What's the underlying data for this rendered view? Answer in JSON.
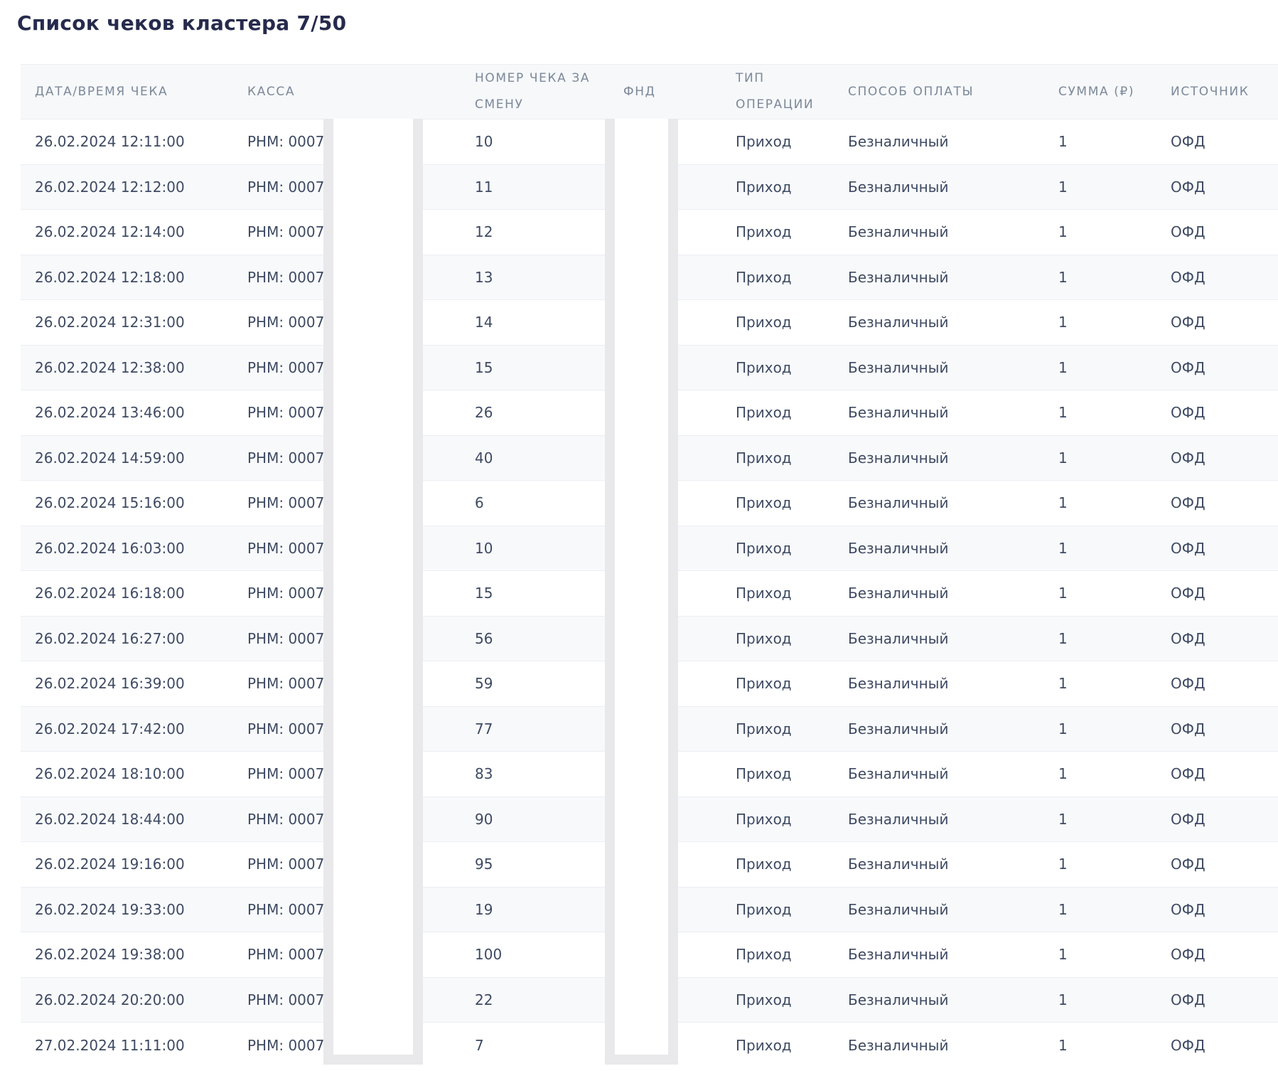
{
  "page": {
    "title": "Список чеков кластера 7/50"
  },
  "table": {
    "columns": [
      {
        "key": "datetime",
        "label": "ДАТА/ВРЕМЯ ЧЕКА"
      },
      {
        "key": "kassa",
        "label": "КАССА"
      },
      {
        "key": "check_no",
        "label": "НОМЕР ЧЕКА ЗА СМЕНУ"
      },
      {
        "key": "fnd",
        "label": "ФНД"
      },
      {
        "key": "op_type",
        "label": "ТИП ОПЕРАЦИИ"
      },
      {
        "key": "payment",
        "label": "СПОСОБ ОПЛАТЫ"
      },
      {
        "key": "sum",
        "label": "СУММА (₽)"
      },
      {
        "key": "source",
        "label": "ИСТОЧНИК"
      }
    ],
    "rows": [
      {
        "datetime": "26.02.2024 12:11:00",
        "kassa": "РНМ: 0007",
        "check_no": "10",
        "fnd": "",
        "op_type": "Приход",
        "payment": "Безналичный",
        "sum": "1",
        "source": "ОФД"
      },
      {
        "datetime": "26.02.2024 12:12:00",
        "kassa": "РНМ: 0007",
        "check_no": "11",
        "fnd": "",
        "op_type": "Приход",
        "payment": "Безналичный",
        "sum": "1",
        "source": "ОФД"
      },
      {
        "datetime": "26.02.2024 12:14:00",
        "kassa": "РНМ: 0007",
        "check_no": "12",
        "fnd": "",
        "op_type": "Приход",
        "payment": "Безналичный",
        "sum": "1",
        "source": "ОФД"
      },
      {
        "datetime": "26.02.2024 12:18:00",
        "kassa": "РНМ: 0007",
        "check_no": "13",
        "fnd": "",
        "op_type": "Приход",
        "payment": "Безналичный",
        "sum": "1",
        "source": "ОФД"
      },
      {
        "datetime": "26.02.2024 12:31:00",
        "kassa": "РНМ: 0007",
        "check_no": "14",
        "fnd": "",
        "op_type": "Приход",
        "payment": "Безналичный",
        "sum": "1",
        "source": "ОФД"
      },
      {
        "datetime": "26.02.2024 12:38:00",
        "kassa": "РНМ: 0007",
        "check_no": "15",
        "fnd": "",
        "op_type": "Приход",
        "payment": "Безналичный",
        "sum": "1",
        "source": "ОФД"
      },
      {
        "datetime": "26.02.2024 13:46:00",
        "kassa": "РНМ: 0007",
        "check_no": "26",
        "fnd": "",
        "op_type": "Приход",
        "payment": "Безналичный",
        "sum": "1",
        "source": "ОФД"
      },
      {
        "datetime": "26.02.2024 14:59:00",
        "kassa": "РНМ: 0007",
        "check_no": "40",
        "fnd": "",
        "op_type": "Приход",
        "payment": "Безналичный",
        "sum": "1",
        "source": "ОФД"
      },
      {
        "datetime": "26.02.2024 15:16:00",
        "kassa": "РНМ: 0007",
        "check_no": "6",
        "fnd": "",
        "op_type": "Приход",
        "payment": "Безналичный",
        "sum": "1",
        "source": "ОФД"
      },
      {
        "datetime": "26.02.2024 16:03:00",
        "kassa": "РНМ: 0007",
        "check_no": "10",
        "fnd": "",
        "op_type": "Приход",
        "payment": "Безналичный",
        "sum": "1",
        "source": "ОФД"
      },
      {
        "datetime": "26.02.2024 16:18:00",
        "kassa": "РНМ: 0007",
        "check_no": "15",
        "fnd": "",
        "op_type": "Приход",
        "payment": "Безналичный",
        "sum": "1",
        "source": "ОФД"
      },
      {
        "datetime": "26.02.2024 16:27:00",
        "kassa": "РНМ: 0007",
        "check_no": "56",
        "fnd": "",
        "op_type": "Приход",
        "payment": "Безналичный",
        "sum": "1",
        "source": "ОФД"
      },
      {
        "datetime": "26.02.2024 16:39:00",
        "kassa": "РНМ: 0007",
        "check_no": "59",
        "fnd": "",
        "op_type": "Приход",
        "payment": "Безналичный",
        "sum": "1",
        "source": "ОФД"
      },
      {
        "datetime": "26.02.2024 17:42:00",
        "kassa": "РНМ: 0007",
        "check_no": "77",
        "fnd": "",
        "op_type": "Приход",
        "payment": "Безналичный",
        "sum": "1",
        "source": "ОФД"
      },
      {
        "datetime": "26.02.2024 18:10:00",
        "kassa": "РНМ: 0007",
        "check_no": "83",
        "fnd": "",
        "op_type": "Приход",
        "payment": "Безналичный",
        "sum": "1",
        "source": "ОФД"
      },
      {
        "datetime": "26.02.2024 18:44:00",
        "kassa": "РНМ: 0007",
        "check_no": "90",
        "fnd": "",
        "op_type": "Приход",
        "payment": "Безналичный",
        "sum": "1",
        "source": "ОФД"
      },
      {
        "datetime": "26.02.2024 19:16:00",
        "kassa": "РНМ: 0007",
        "check_no": "95",
        "fnd": "",
        "op_type": "Приход",
        "payment": "Безналичный",
        "sum": "1",
        "source": "ОФД"
      },
      {
        "datetime": "26.02.2024 19:33:00",
        "kassa": "РНМ: 0007",
        "check_no": "19",
        "fnd": "",
        "op_type": "Приход",
        "payment": "Безналичный",
        "sum": "1",
        "source": "ОФД"
      },
      {
        "datetime": "26.02.2024 19:38:00",
        "kassa": "РНМ: 0007",
        "check_no": "100",
        "fnd": "",
        "op_type": "Приход",
        "payment": "Безналичный",
        "sum": "1",
        "source": "ОФД"
      },
      {
        "datetime": "26.02.2024 20:20:00",
        "kassa": "РНМ: 0007",
        "check_no": "22",
        "fnd": "",
        "op_type": "Приход",
        "payment": "Безналичный",
        "sum": "1",
        "source": "ОФД"
      },
      {
        "datetime": "27.02.2024 11:11:00",
        "kassa": "РНМ: 0007",
        "check_no": "7",
        "fnd": "",
        "op_type": "Приход",
        "payment": "Безналичный",
        "sum": "1",
        "source": "ОФД"
      }
    ]
  }
}
